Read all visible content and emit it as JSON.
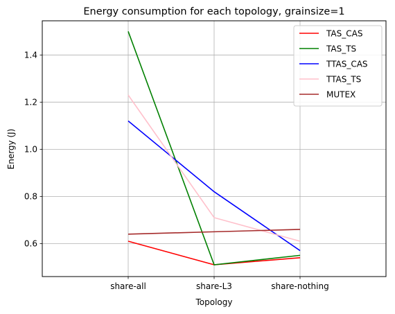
{
  "chart_data": {
    "type": "line",
    "title": "Energy consumption for each topology, grainsize=1",
    "xlabel": "Topology",
    "ylabel": "Energy (J)",
    "categories": [
      "share-all",
      "share-L3",
      "share-nothing"
    ],
    "x_range": [
      -1,
      3
    ],
    "ylim": [
      0.46,
      1.545
    ],
    "yticks": [
      0.6,
      0.8,
      1.0,
      1.2,
      1.4
    ],
    "ytick_labels": [
      "0.6",
      "0.8",
      "1.0",
      "1.2",
      "1.4"
    ],
    "grid": true,
    "legend_position": "top-right",
    "series": [
      {
        "name": "TAS_CAS",
        "color": "#ff0000",
        "values": [
          0.61,
          0.51,
          0.54
        ]
      },
      {
        "name": "TAS_TS",
        "color": "#008000",
        "values": [
          1.5,
          0.51,
          0.55
        ]
      },
      {
        "name": "TTAS_CAS",
        "color": "#0000ff",
        "values": [
          1.12,
          0.82,
          0.57
        ]
      },
      {
        "name": "TTAS_TS",
        "color": "#ffc0cb",
        "values": [
          1.23,
          0.71,
          0.61
        ]
      },
      {
        "name": "MUTEX",
        "color": "#a52a2a",
        "values": [
          0.64,
          0.65,
          0.66
        ]
      }
    ]
  }
}
